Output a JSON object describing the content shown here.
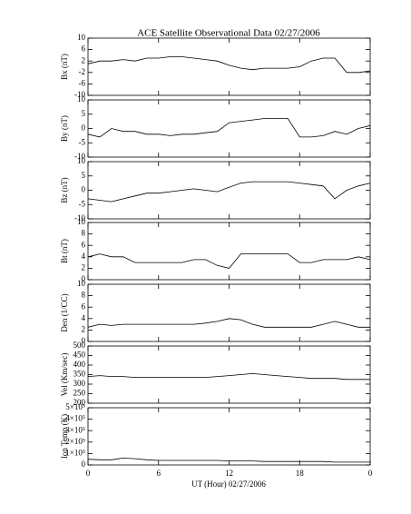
{
  "chart_data": {
    "type": "line",
    "title": "ACE Satellite Observational Data   02/27/2006",
    "xlabel": "UT (Hour)   02/27/2006",
    "xlim": [
      0,
      24
    ],
    "xticks": [
      0,
      6,
      12,
      18,
      {
        "value": 24,
        "label": "0"
      }
    ],
    "x": [
      0,
      1,
      2,
      3,
      4,
      5,
      6,
      7,
      8,
      9,
      10,
      11,
      12,
      13,
      14,
      15,
      16,
      17,
      18,
      19,
      20,
      21,
      22,
      23,
      24
    ],
    "panels": [
      {
        "ylabel": "Bx (nT)",
        "ylim": [
          -10,
          10
        ],
        "yticks": [
          -10,
          -6,
          -2,
          2,
          6,
          10
        ],
        "values": [
          1,
          2,
          2,
          2.5,
          2,
          3,
          3,
          3.5,
          3.5,
          3,
          2.5,
          2,
          0.5,
          -0.5,
          -1,
          -0.5,
          -0.5,
          -0.5,
          0,
          2,
          3,
          3,
          -2,
          -2,
          -1.5
        ]
      },
      {
        "ylabel": "By (nT)",
        "ylim": [
          -10,
          10
        ],
        "yticks": [
          -10,
          -5,
          0,
          5,
          10
        ],
        "values": [
          -2,
          -3,
          0,
          -1,
          -1,
          -2,
          -2,
          -2.5,
          -2,
          -2,
          -1.5,
          -1,
          2,
          2.5,
          3,
          3.5,
          3.5,
          3.5,
          -3,
          -3,
          -2.5,
          -1,
          -2,
          0,
          1
        ]
      },
      {
        "ylabel": "Bz (nT)",
        "ylim": [
          -10,
          10
        ],
        "yticks": [
          -10,
          -5,
          0,
          5,
          10
        ],
        "values": [
          -3,
          -3.5,
          -4,
          -3,
          -2,
          -1,
          -1,
          -0.5,
          0,
          0.5,
          0,
          -0.5,
          1,
          2.5,
          3,
          3,
          3,
          3,
          2.5,
          2,
          1.5,
          -3,
          0,
          1.5,
          2.5
        ]
      },
      {
        "ylabel": "Bt (nT)",
        "ylim": [
          0,
          10
        ],
        "yticks": [
          0,
          2,
          4,
          6,
          8,
          10
        ],
        "values": [
          4,
          4.5,
          4,
          4,
          3,
          3,
          3,
          3,
          3,
          3.5,
          3.5,
          2.5,
          2,
          4.5,
          4.5,
          4.5,
          4.5,
          4.5,
          3,
          3,
          3.5,
          3.5,
          3.5,
          4,
          3.5
        ]
      },
      {
        "ylabel": "Den (1/CC)",
        "ylim": [
          0,
          10
        ],
        "yticks": [
          0,
          2,
          4,
          6,
          8,
          10
        ],
        "values": [
          2.5,
          3,
          2.8,
          3,
          3,
          3,
          3,
          3,
          3,
          3,
          3.2,
          3.5,
          4,
          3.8,
          3,
          2.5,
          2.5,
          2.5,
          2.5,
          2.5,
          3,
          3.5,
          3,
          2.5,
          2.5
        ]
      },
      {
        "ylabel": "Vel (Km/sec)",
        "ylim": [
          200,
          500
        ],
        "yticks": [
          200,
          250,
          300,
          350,
          400,
          450,
          500
        ],
        "values": [
          340,
          345,
          340,
          340,
          335,
          335,
          335,
          335,
          335,
          335,
          335,
          340,
          345,
          350,
          355,
          350,
          345,
          340,
          335,
          330,
          330,
          330,
          325,
          325,
          325
        ]
      },
      {
        "ylabel": "Ion Temp (K)",
        "ylim": [
          0,
          500000
        ],
        "yticks": [
          0,
          {
            "value": 100000,
            "label": "1×10⁵"
          },
          {
            "value": 200000,
            "label": "2×10⁵"
          },
          {
            "value": 300000,
            "label": "3×10⁵"
          },
          {
            "value": 400000,
            "label": "4×10⁵"
          },
          {
            "value": 500000,
            "label": "5×10⁵"
          }
        ],
        "values": [
          50000,
          45000,
          45000,
          60000,
          55000,
          45000,
          40000,
          40000,
          40000,
          40000,
          40000,
          40000,
          35000,
          35000,
          35000,
          30000,
          30000,
          30000,
          30000,
          30000,
          30000,
          25000,
          25000,
          25000,
          25000
        ]
      }
    ]
  }
}
